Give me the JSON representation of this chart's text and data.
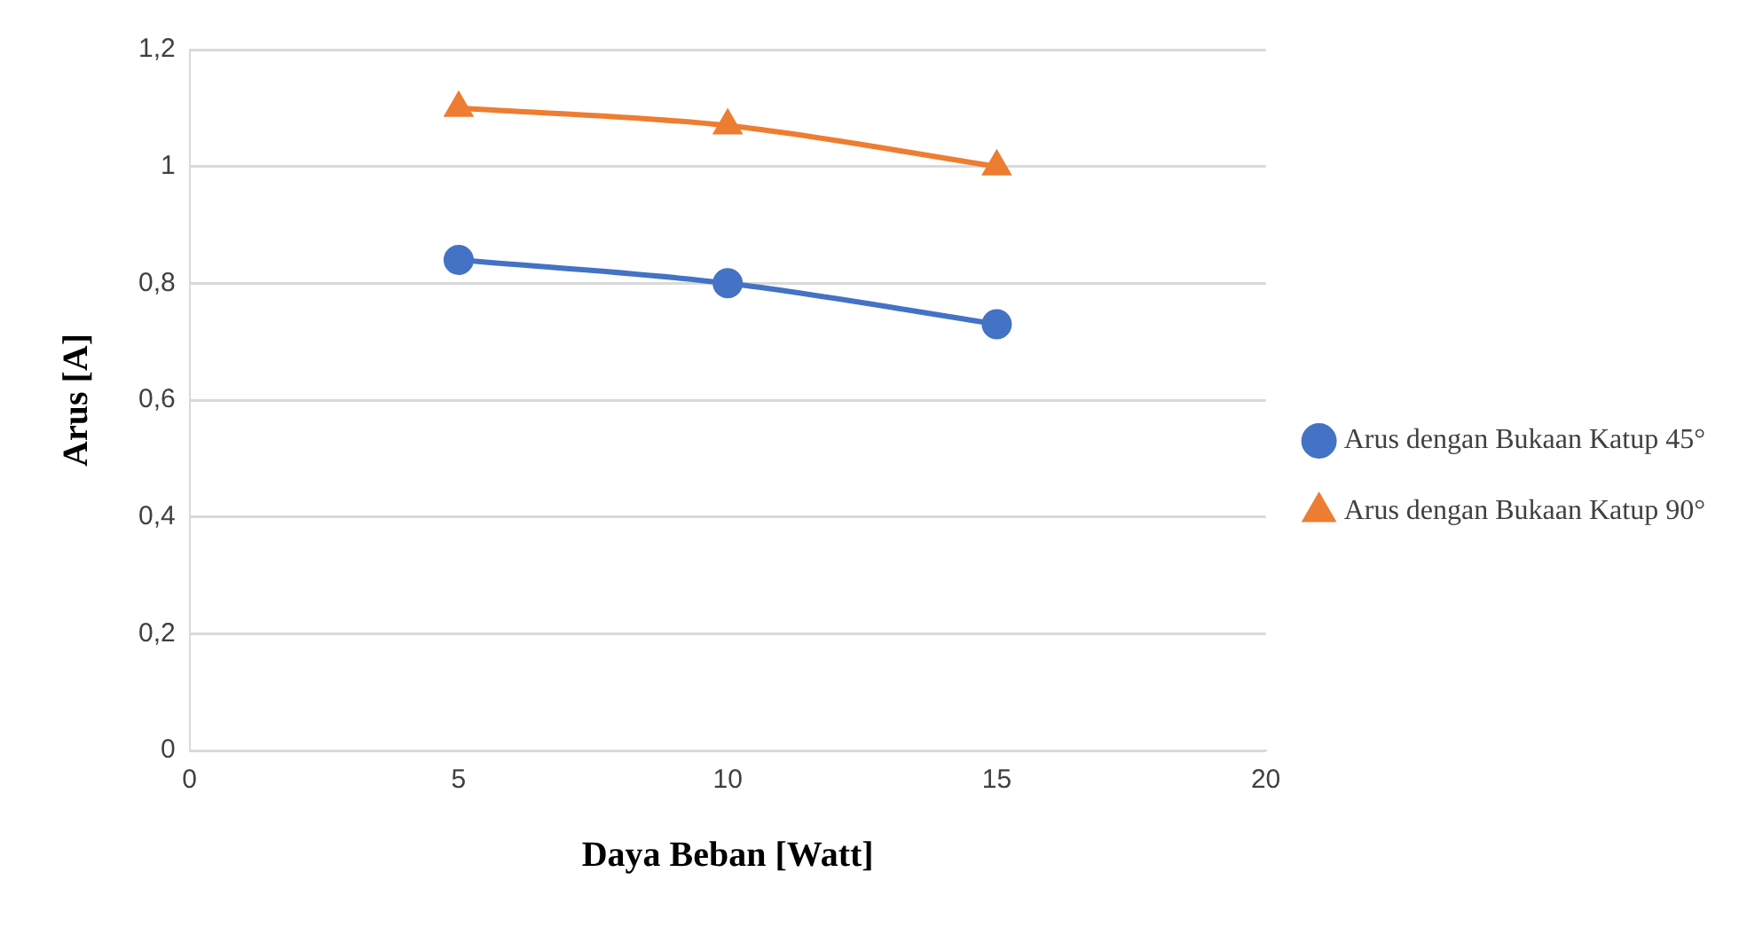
{
  "chart_data": {
    "type": "line",
    "xlabel": "Daya Beban [Watt]",
    "ylabel": "Arus [A]",
    "x": [
      5,
      10,
      15
    ],
    "series": [
      {
        "name": "Arus dengan Bukaan Katup 45°",
        "color": "#4472c4",
        "values": [
          0.84,
          0.8,
          0.73
        ],
        "marker": "circle"
      },
      {
        "name": "Arus dengan Bukaan Katup 90°",
        "color": "#ed7d31",
        "values": [
          1.1,
          1.07,
          1.0
        ],
        "marker": "triangle"
      }
    ],
    "xlim": [
      0,
      20
    ],
    "xticks": [
      0,
      5,
      10,
      15,
      20
    ],
    "ylim": [
      0,
      1.2
    ],
    "yticks": [
      0,
      {
        "value": 0.2,
        "label": "0,2"
      },
      {
        "value": 0.4,
        "label": "0,4"
      },
      {
        "value": 0.6,
        "label": "0,6"
      },
      {
        "value": 0.8,
        "label": "0,8"
      },
      1,
      {
        "value": 1.2,
        "label": "1,2"
      }
    ],
    "grid": "y",
    "legend": "right"
  }
}
